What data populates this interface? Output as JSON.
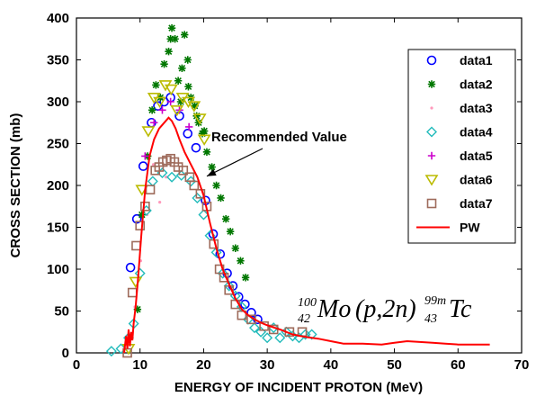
{
  "chart_data": {
    "type": "scatter",
    "title": "",
    "xlabel": "ENERGY OF INCIDENT PROTON (MeV)",
    "ylabel": "CROSS SECTION (mb)",
    "xlim": [
      0,
      70
    ],
    "ylim": [
      0,
      400
    ],
    "x_ticks": [
      0,
      10,
      20,
      30,
      40,
      50,
      60,
      70
    ],
    "y_ticks": [
      0,
      50,
      100,
      150,
      200,
      250,
      300,
      350,
      400
    ],
    "grid": false,
    "legend_position": "right",
    "annotation": {
      "text": "Recommended Value",
      "points_to": {
        "x": 20.5,
        "y": 211
      }
    },
    "reaction": {
      "target_mass": "100",
      "target_z": "42",
      "target": "Mo",
      "channel": "(p,2n)",
      "product_mass": "99m",
      "product_z": "43",
      "product": "Tc"
    },
    "series": [
      {
        "name": "data1",
        "marker": "circle",
        "color": "#0000ff",
        "x": [
          8.5,
          9.5,
          10.5,
          11.8,
          12.8,
          13.8,
          14.8,
          16.2,
          17.5,
          18.8,
          20.3,
          21.5,
          22.6,
          23.7,
          24.6,
          25.5,
          26.5,
          27.5,
          28.5
        ],
        "y": [
          102,
          160,
          223,
          275,
          295,
          300,
          305,
          283,
          262,
          245,
          182,
          142,
          118,
          95,
          80,
          67,
          58,
          48,
          40
        ]
      },
      {
        "name": "data2",
        "marker": "star",
        "color": "#007700",
        "x": [
          9.6,
          10.3,
          11.2,
          11.9,
          12.5,
          13.2,
          13.8,
          14.5,
          15.0,
          15.5,
          16.0,
          16.6,
          17.0,
          17.5,
          18.0,
          18.6,
          19.2,
          19.8,
          20.5,
          21.3,
          22.0,
          22.7,
          23.5,
          24.2,
          25.0,
          25.8,
          26.6,
          14.8,
          16.4,
          17.6,
          18.9,
          20.1
        ],
        "y": [
          52,
          165,
          235,
          290,
          320,
          305,
          345,
          360,
          388,
          375,
          325,
          340,
          380,
          350,
          305,
          295,
          275,
          262,
          240,
          222,
          200,
          185,
          160,
          145,
          125,
          110,
          90,
          375,
          300,
          318,
          283,
          265
        ]
      },
      {
        "name": "data3",
        "marker": "dot",
        "color": "#ff99bb",
        "x": [
          7.5,
          8.2,
          9.2,
          10.1,
          11.1,
          12.1,
          13.1,
          14.1
        ],
        "y": [
          8,
          20,
          55,
          110,
          165,
          225,
          180,
          210
        ]
      },
      {
        "name": "data4",
        "marker": "diamond",
        "color": "#22bbbb",
        "x": [
          5.5,
          7.0,
          8.2,
          9.0,
          10.0,
          11.0,
          12.0,
          13.5,
          15.0,
          16.5,
          18.0,
          19.0,
          20.0,
          21.0,
          22.0,
          23.0,
          24.0,
          25.0,
          26.0,
          27.0,
          28.0,
          29.0,
          30.0,
          31.0,
          32.0,
          33.0,
          34.0,
          35.0,
          36.0,
          37.0
        ],
        "y": [
          2,
          5,
          18,
          35,
          95,
          170,
          205,
          215,
          210,
          212,
          205,
          185,
          165,
          140,
          120,
          95,
          80,
          68,
          55,
          40,
          30,
          25,
          18,
          30,
          18,
          25,
          20,
          18,
          22,
          22
        ]
      },
      {
        "name": "data5",
        "marker": "plus",
        "color": "#cc00cc",
        "x": [
          10.8,
          12.2,
          13.5,
          14.8,
          16.2,
          17.7
        ],
        "y": [
          235,
          275,
          290,
          300,
          290,
          270
        ]
      },
      {
        "name": "data6",
        "marker": "triangle-down",
        "color": "#bbbb00",
        "x": [
          8.2,
          9.3,
          10.3,
          11.3,
          12.2,
          13.1,
          14.0,
          14.9,
          15.8,
          16.7,
          17.6,
          18.5,
          19.4,
          20.1
        ],
        "y": [
          5,
          85,
          195,
          265,
          305,
          300,
          320,
          315,
          290,
          305,
          300,
          295,
          280,
          255
        ]
      },
      {
        "name": "data7",
        "marker": "square",
        "color": "#9e6b5b",
        "x": [
          8.0,
          8.8,
          9.4,
          10.0,
          10.8,
          11.6,
          12.4,
          13.0,
          13.6,
          14.2,
          14.8,
          15.4,
          16.0,
          16.8,
          17.8,
          18.5,
          19.5,
          20.5,
          21.6,
          22.5,
          23.2,
          24.0,
          25.0,
          26.0,
          27.5,
          29.5,
          31.0,
          33.5,
          35.5
        ],
        "y": [
          0,
          72,
          128,
          152,
          175,
          195,
          218,
          222,
          228,
          230,
          232,
          228,
          222,
          218,
          210,
          200,
          190,
          175,
          130,
          100,
          90,
          75,
          58,
          45,
          40,
          32,
          28,
          25,
          25
        ]
      },
      {
        "name": "PW",
        "marker": "line",
        "color": "#ff0000",
        "x": [
          7.5,
          7.8,
          8.0,
          8.2,
          8.4,
          8.6,
          8.8,
          9.0,
          9.3,
          9.7,
          10.2,
          10.8,
          11.5,
          12.2,
          13.0,
          13.8,
          14.5,
          15.0,
          15.6,
          16.2,
          17.0,
          18.0,
          19.0,
          20.0,
          21.0,
          22.0,
          23.0,
          24.0,
          25.0,
          26.0,
          27.0,
          28.0,
          29.0,
          30.0,
          32.0,
          34.0,
          36.0,
          38.0,
          40.0,
          42.0,
          45.0,
          48.0,
          50.0,
          52.0,
          54.0,
          56.0,
          58.0,
          60.0,
          62.0,
          65.0
        ],
        "y": [
          0,
          20,
          5,
          28,
          8,
          25,
          15,
          35,
          55,
          90,
          140,
          195,
          235,
          255,
          268,
          275,
          281,
          277,
          268,
          255,
          240,
          225,
          210,
          188,
          155,
          125,
          100,
          82,
          65,
          52,
          45,
          40,
          36,
          33,
          28,
          22,
          19,
          17,
          14,
          11,
          11,
          10,
          12,
          14,
          13,
          12,
          11,
          10,
          10,
          10
        ]
      }
    ]
  }
}
